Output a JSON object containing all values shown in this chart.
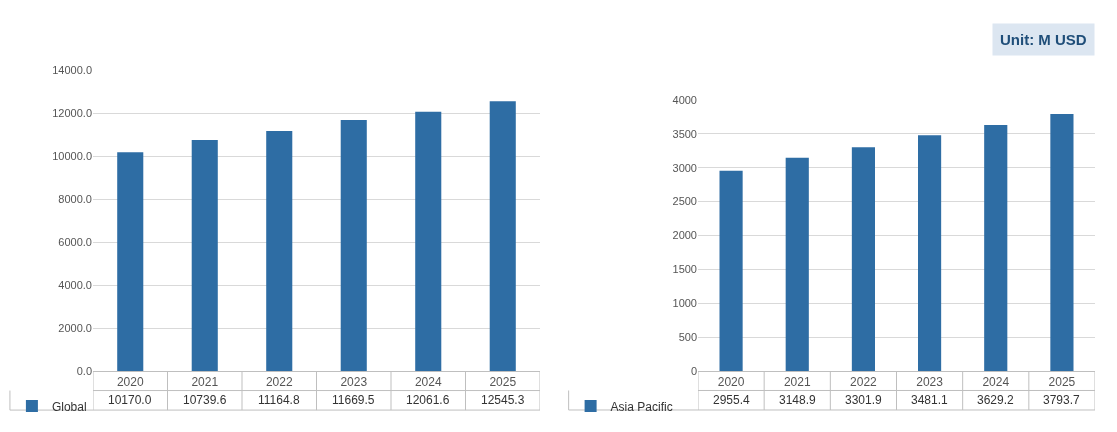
{
  "chart_data": [
    {
      "type": "bar",
      "categories": [
        "2020",
        "2021",
        "2022",
        "2023",
        "2024",
        "2025"
      ],
      "series": [
        {
          "name": "Global",
          "color": "#2e6da4",
          "values": [
            10170.0,
            10739.6,
            11164.8,
            11669.5,
            12061.6,
            12545.3
          ],
          "value_labels": [
            "10170.0",
            "10739.6",
            "11164.8",
            "11669.5",
            "12061.6",
            "12545.3"
          ]
        }
      ],
      "ylim": [
        0,
        14000
      ],
      "yticks": [
        {
          "value": 0,
          "label": "0.0"
        },
        {
          "value": 2000,
          "label": "2000.0"
        },
        {
          "value": 4000,
          "label": "4000.0"
        },
        {
          "value": 6000,
          "label": "6000.0"
        },
        {
          "value": 8000,
          "label": "8000.0"
        },
        {
          "value": 10000,
          "label": "10000.0"
        },
        {
          "value": 12000,
          "label": "12000.0"
        },
        {
          "value": 14000,
          "label": "14000.0"
        }
      ],
      "grid": "y",
      "legend": "bottom"
    },
    {
      "type": "bar",
      "categories": [
        "2020",
        "2021",
        "2022",
        "2023",
        "2024",
        "2025"
      ],
      "series": [
        {
          "name": "Asia Pacific",
          "color": "#2e6da4",
          "values": [
            2955.4,
            3148.9,
            3301.9,
            3481.1,
            3629.2,
            3793.7
          ],
          "value_labels": [
            "2955.4",
            "3148.9",
            "3301.9",
            "3481.1",
            "3629.2",
            "3793.7"
          ]
        }
      ],
      "ylim": [
        0,
        4000
      ],
      "yticks": [
        0,
        500,
        1000,
        1500,
        2000,
        2500,
        3000,
        3500,
        4000
      ],
      "grid": "y",
      "legend": "bottom",
      "annotations": [
        "Unit: M USD"
      ]
    }
  ]
}
